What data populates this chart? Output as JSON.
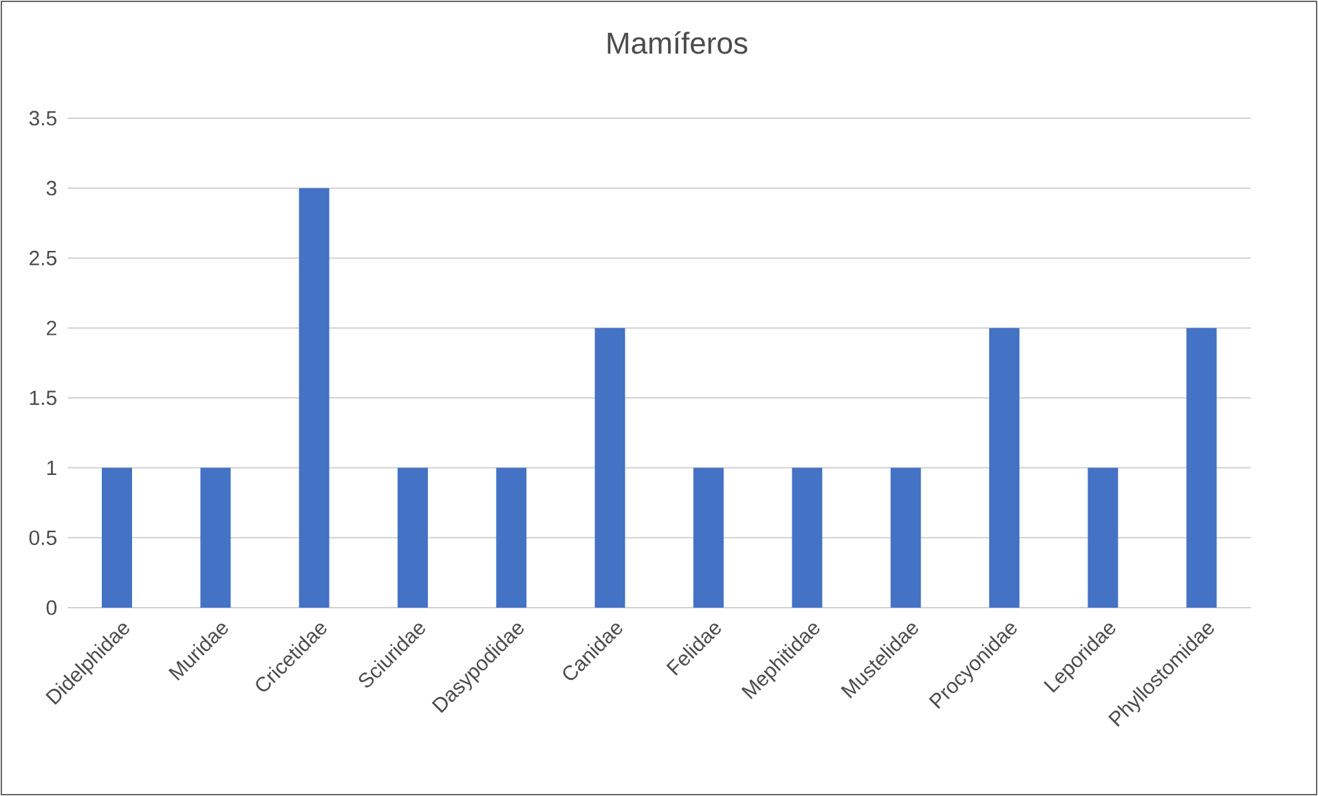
{
  "chart_data": {
    "type": "bar",
    "title": "Mamíferos",
    "categories": [
      "Didelphidae",
      "Muridae",
      "Cricetidae",
      "Sciuridae",
      "Dasypodidae",
      "Canidae",
      "Felidae",
      "Mephitidae",
      "Mustelidae",
      "Procyonidae",
      "Leporidae",
      "Phyllostomidae"
    ],
    "values": [
      1,
      1,
      3,
      1,
      1,
      2,
      1,
      1,
      1,
      2,
      1,
      2
    ],
    "color": "#4472c4",
    "ylim": [
      0,
      3.5
    ],
    "yticks": [
      0,
      0.5,
      1,
      1.5,
      2,
      2.5,
      3,
      3.5
    ],
    "grid": "y"
  }
}
